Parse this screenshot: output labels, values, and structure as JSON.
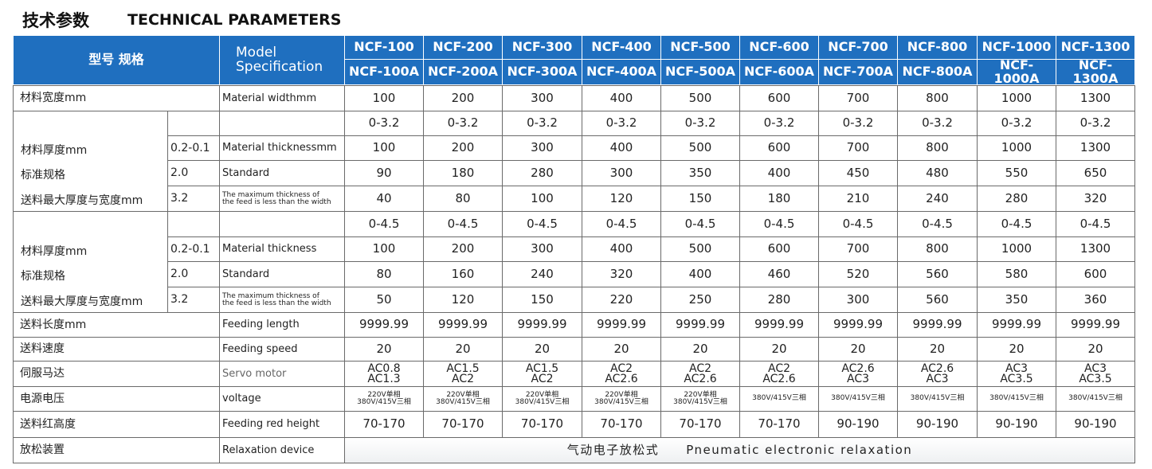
{
  "header": {
    "title_cn": "技术参数",
    "title_en": "TECHNICAL PARAMETERS"
  },
  "table": {
    "head": {
      "label_cn": "型号 规格",
      "label_en": [
        "Model",
        "Specification"
      ],
      "models": [
        "NCF-100",
        "NCF-200",
        "NCF-300",
        "NCF-400",
        "NCF-500",
        "NCF-600",
        "NCF-700",
        "NCF-800",
        "NCF-1000",
        "NCF-1300"
      ],
      "models_a": [
        "NCF-100A",
        "NCF-200A",
        "NCF-300A",
        "NCF-400A",
        "NCF-500A",
        "NCF-600A",
        "NCF-700A",
        "NCF-800A",
        "NCF-1000A",
        "NCF-1300A"
      ]
    },
    "material_width": {
      "label": "材料宽度mm",
      "label_en": "Material widthmm",
      "values": [
        100,
        200,
        300,
        400,
        500,
        600,
        700,
        800,
        1000,
        1300
      ]
    },
    "thickness_groups": [
      {
        "range_values": [
          "0-3.2",
          "0-3.2",
          "0-3.2",
          "0-3.2",
          "0-3.2",
          "0-3.2",
          "0-3.2",
          "0-3.2",
          "0-3.2",
          "0-3.2"
        ],
        "lines": [
          {
            "label": "材料厚度mm",
            "sub": "0.2-0.1",
            "label_en": [
              "Material thicknessmm"
            ],
            "values": [
              100,
              200,
              300,
              400,
              500,
              600,
              700,
              800,
              1000,
              1300
            ]
          },
          {
            "label": "标准规格",
            "sub": "2.0",
            "label_en": [
              "Standard"
            ],
            "values": [
              90,
              180,
              280,
              300,
              350,
              400,
              450,
              480,
              550,
              650
            ]
          },
          {
            "label": "送料最大厚度与宽度mm",
            "sub": "3.2",
            "label_en": [
              "The maximum thickness of",
              "the feed is less than the width"
            ],
            "values": [
              40,
              80,
              100,
              120,
              150,
              180,
              210,
              240,
              280,
              320
            ]
          }
        ]
      },
      {
        "range_values": [
          "0-4.5",
          "0-4.5",
          "0-4.5",
          "0-4.5",
          "0-4.5",
          "0-4.5",
          "0-4.5",
          "0-4.5",
          "0-4.5",
          "0-4.5"
        ],
        "lines": [
          {
            "label": "材料厚度mm",
            "sub": "0.2-0.1",
            "label_en": [
              "Material thickness"
            ],
            "values": [
              100,
              200,
              300,
              400,
              500,
              600,
              700,
              800,
              1000,
              1300
            ]
          },
          {
            "label": "标准规格",
            "sub": "2.0",
            "label_en": [
              "Standard"
            ],
            "values": [
              80,
              160,
              240,
              320,
              400,
              460,
              520,
              560,
              580,
              600
            ]
          },
          {
            "label": "送料最大厚度与宽度mm",
            "sub": "3.2",
            "label_en": [
              "The maximum thickness of",
              "the feed is less than the width"
            ],
            "values": [
              50,
              120,
              150,
              220,
              250,
              280,
              300,
              560,
              350,
              360
            ]
          }
        ]
      }
    ],
    "other_rows": [
      {
        "label": "送料长度mm",
        "label_en": "Feeding length",
        "values": [
          9999.99,
          9999.99,
          9999.99,
          9999.99,
          9999.99,
          9999.99,
          9999.99,
          9999.99,
          9999.99,
          9999.99
        ]
      },
      {
        "label": "送料速度",
        "label_en": "Feeding speed",
        "values": [
          20,
          20,
          20,
          20,
          20,
          20,
          20,
          20,
          20,
          20
        ]
      },
      {
        "label": "伺服马达",
        "label_en": "Servo motor",
        "values": [
          [
            "AC0.8",
            "AC1.3"
          ],
          [
            "AC1.5",
            "AC2"
          ],
          [
            "AC1.5",
            "AC2"
          ],
          [
            "AC2",
            "AC2.6"
          ],
          [
            "AC2",
            "AC2.6"
          ],
          [
            "AC2",
            "AC2.6"
          ],
          [
            "AC2.6",
            "AC3"
          ],
          [
            "AC2.6",
            "AC3"
          ],
          [
            "AC3",
            "AC3.5"
          ],
          [
            "AC3",
            "AC3.5"
          ]
        ]
      },
      {
        "label": "电源电压",
        "label_en": "voltage",
        "values": [
          [
            "220V单相",
            "380V/415V三相"
          ],
          [
            "220V单相",
            "380V/415V三相"
          ],
          [
            "220V单相",
            "380V/415V三相"
          ],
          [
            "220V单相",
            "380V/415V三相"
          ],
          [
            "220V单相",
            "380V/415V三相"
          ],
          [
            "380V/415V三相"
          ],
          [
            "380V/415V三相"
          ],
          [
            "380V/415V三相"
          ],
          [
            "380V/415V三相"
          ],
          [
            "380V/415V三相"
          ]
        ]
      },
      {
        "label": "送料红高度",
        "label_en": "Feeding red height",
        "values": [
          "70-170",
          "70-170",
          "70-170",
          "70-170",
          "70-170",
          "70-170",
          "90-190",
          "90-190",
          "90-190",
          "90-190"
        ]
      }
    ],
    "relaxation": {
      "label": "放松装置",
      "label_en": "Relaxation device",
      "value_cn": "气动电子放松式",
      "value_en": "Pneumatic electronic relaxation"
    }
  }
}
